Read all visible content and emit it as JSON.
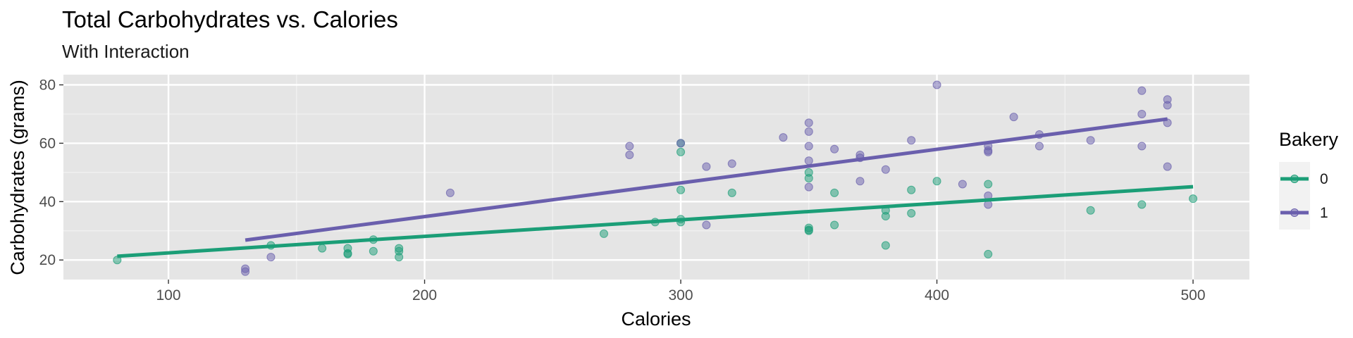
{
  "chart_data": {
    "type": "scatter",
    "title": "Total Carbohydrates vs. Calories",
    "subtitle": "With Interaction",
    "xlabel": "Calories",
    "ylabel": "Carbohydrates (grams)",
    "xlim": [
      59,
      522
    ],
    "ylim": [
      13.3,
      83.5
    ],
    "x_ticks": [
      100,
      200,
      300,
      400,
      500
    ],
    "y_ticks": [
      20,
      40,
      60,
      80
    ],
    "grid": true,
    "panel_color": "#e5e5e5",
    "legend": {
      "title": "Bakery",
      "position": "right",
      "entries": [
        {
          "label": "0",
          "color": "#1b9e77"
        },
        {
          "label": "1",
          "color": "#6a5fad"
        }
      ]
    },
    "series": [
      {
        "name": "0",
        "color": "#1b9e77",
        "points": [
          [
            80,
            20
          ],
          [
            140,
            25
          ],
          [
            160,
            24
          ],
          [
            170,
            24
          ],
          [
            170,
            22
          ],
          [
            170,
            22.3
          ],
          [
            180,
            27
          ],
          [
            180,
            23
          ],
          [
            190,
            24
          ],
          [
            190,
            23
          ],
          [
            190,
            21
          ],
          [
            270,
            29
          ],
          [
            290,
            33
          ],
          [
            300,
            60
          ],
          [
            300,
            57
          ],
          [
            300,
            44
          ],
          [
            300,
            34
          ],
          [
            300,
            33
          ],
          [
            320,
            43
          ],
          [
            350,
            50
          ],
          [
            350,
            48
          ],
          [
            350,
            31
          ],
          [
            350,
            30
          ],
          [
            350,
            30.3
          ],
          [
            360,
            43
          ],
          [
            360,
            32
          ],
          [
            380,
            37
          ],
          [
            380,
            35
          ],
          [
            380,
            25
          ],
          [
            390,
            44
          ],
          [
            390,
            36
          ],
          [
            400,
            47
          ],
          [
            420,
            46
          ],
          [
            420,
            22
          ],
          [
            460,
            37
          ],
          [
            480,
            39
          ],
          [
            500,
            41
          ]
        ],
        "fit": {
          "x": [
            80,
            500
          ],
          "y": [
            21.3,
            45.1
          ]
        }
      },
      {
        "name": "1",
        "color": "#6a5fad",
        "points": [
          [
            130,
            17
          ],
          [
            130,
            16
          ],
          [
            140,
            21
          ],
          [
            210,
            43
          ],
          [
            280,
            59
          ],
          [
            280,
            56
          ],
          [
            300,
            60
          ],
          [
            310,
            52
          ],
          [
            310,
            32
          ],
          [
            320,
            53
          ],
          [
            340,
            62
          ],
          [
            350,
            67
          ],
          [
            350,
            64
          ],
          [
            350,
            59
          ],
          [
            350,
            54
          ],
          [
            350,
            45
          ],
          [
            360,
            58
          ],
          [
            370,
            56
          ],
          [
            370,
            55
          ],
          [
            370,
            47
          ],
          [
            380,
            51
          ],
          [
            390,
            61
          ],
          [
            400,
            80
          ],
          [
            410,
            46
          ],
          [
            420,
            59
          ],
          [
            420,
            57
          ],
          [
            420,
            57.5
          ],
          [
            420,
            42
          ],
          [
            420,
            39
          ],
          [
            430,
            69
          ],
          [
            440,
            63
          ],
          [
            440,
            59
          ],
          [
            460,
            61
          ],
          [
            480,
            78
          ],
          [
            480,
            70
          ],
          [
            480,
            59
          ],
          [
            490,
            75
          ],
          [
            490,
            73
          ],
          [
            490,
            67
          ],
          [
            490,
            52
          ]
        ],
        "fit": {
          "x": [
            130,
            490
          ],
          "y": [
            26.8,
            68.3
          ]
        }
      }
    ]
  }
}
